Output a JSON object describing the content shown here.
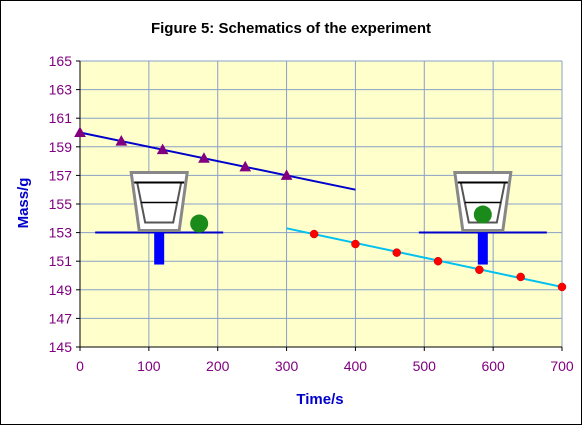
{
  "chart_data": {
    "type": "scatter",
    "title": "Figure 5: Schematics of the experiment",
    "xlabel": "Time/s",
    "ylabel": "Mass/g",
    "xlim": [
      0,
      700
    ],
    "ylim": [
      145,
      165
    ],
    "x_ticks": [
      0,
      100,
      200,
      300,
      400,
      500,
      600,
      700
    ],
    "y_ticks": [
      145,
      147,
      149,
      151,
      153,
      155,
      157,
      159,
      161,
      163,
      165
    ],
    "grid": true,
    "legend": "none",
    "series": [
      {
        "color": "#800080",
        "marker": "triangle",
        "points": [
          [
            0,
            160.0
          ],
          [
            60,
            159.4
          ],
          [
            120,
            158.8
          ],
          [
            180,
            158.2
          ],
          [
            240,
            157.6
          ],
          [
            300,
            157.0
          ]
        ]
      },
      {
        "color": "#ff0000",
        "marker": "circle",
        "points": [
          [
            340,
            152.9
          ],
          [
            400,
            152.2
          ],
          [
            460,
            151.6
          ],
          [
            520,
            151.0
          ],
          [
            580,
            150.4
          ],
          [
            640,
            149.9
          ],
          [
            700,
            149.2
          ]
        ]
      }
    ],
    "trendlines": [
      {
        "color": "#0000cc",
        "from": [
          0,
          160.0
        ],
        "to": [
          400,
          156.0
        ]
      },
      {
        "color": "#00c0f0",
        "from": [
          300,
          153.3
        ],
        "to": [
          700,
          149.2
        ]
      }
    ],
    "schematics": [
      {
        "description_icon": "beaker-on-balance-icon",
        "ball_color": "#1a8a1a",
        "ball_position": "beside"
      },
      {
        "description_icon": "beaker-on-balance-icon",
        "ball_color": "#1a8a1a",
        "ball_position": "inside"
      }
    ],
    "colors": {
      "plot_bg": "#ffffcc",
      "grid": "#8aa0c8"
    }
  }
}
